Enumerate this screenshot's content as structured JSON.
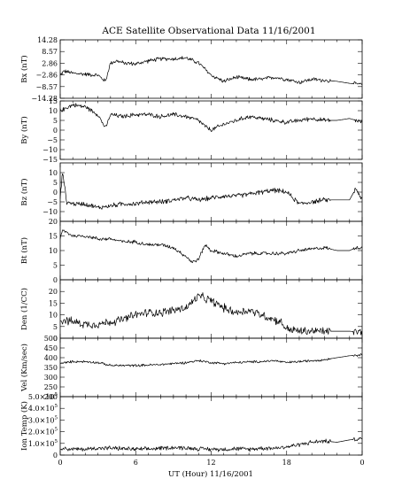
{
  "chart_data": {
    "type": "line",
    "title": "ACE Satellite Observational Data   11/16/2001",
    "xlabel": "UT (Hour)   11/16/2001",
    "x_ticks": [
      "0",
      "6",
      "12",
      "18",
      "0"
    ],
    "xlim": [
      0,
      24
    ],
    "grid": false,
    "legend": "none",
    "panels": [
      {
        "id": "bx",
        "ylabel": "Bx (nT)",
        "ylim": [
          -14.28,
          14.28
        ],
        "y_ticks": [
          {
            "v": 14.28,
            "label": "14.28"
          },
          {
            "v": 8.57,
            "label": "8.57"
          },
          {
            "v": 2.86,
            "label": "2.86"
          },
          {
            "v": -2.86,
            "label": "−2.86"
          },
          {
            "v": -8.57,
            "label": "−8.57"
          },
          {
            "v": -14.28,
            "label": "−14.28"
          }
        ],
        "noise": 0.8,
        "series": {
          "x": [
            0,
            0.3,
            1,
            2,
            3,
            3.6,
            4,
            4.5,
            5,
            6,
            7,
            8,
            9,
            10,
            11,
            12,
            13,
            14,
            15,
            16,
            17,
            18,
            19,
            20,
            21,
            22,
            23,
            24
          ],
          "y": [
            -3,
            -1,
            -2,
            -2.5,
            -3,
            -6,
            3,
            4,
            3,
            2.5,
            4,
            5,
            5,
            5.5,
            3,
            -3,
            -6,
            -4,
            -5,
            -5,
            -4,
            -5,
            -6.5,
            -5,
            -5.5,
            -6,
            -7,
            -7.5
          ]
        }
      },
      {
        "id": "by",
        "ylabel": "By (nT)",
        "ylim": [
          -15,
          15
        ],
        "y_ticks": [
          {
            "v": 15,
            "label": "15"
          },
          {
            "v": 10,
            "label": "10"
          },
          {
            "v": 5,
            "label": "5"
          },
          {
            "v": 0,
            "label": "0"
          },
          {
            "v": -5,
            "label": "−5"
          },
          {
            "v": -10,
            "label": "−10"
          },
          {
            "v": -15,
            "label": "−15"
          }
        ],
        "noise": 0.9,
        "series": {
          "x": [
            0,
            1,
            2,
            2.5,
            3,
            3.6,
            4,
            5,
            6,
            7,
            8,
            9,
            10,
            11,
            11.5,
            12,
            13,
            14,
            15,
            16,
            17,
            18,
            19,
            20,
            21,
            22,
            23,
            24
          ],
          "y": [
            10,
            13,
            12,
            10,
            8,
            1,
            8,
            7,
            8,
            8,
            7,
            8,
            7,
            5,
            2,
            0,
            3,
            5,
            7,
            6,
            5,
            4,
            5,
            6,
            5,
            5,
            6,
            4
          ]
        }
      },
      {
        "id": "bz",
        "ylabel": "Bz (nT)",
        "ylim": [
          -15,
          15
        ],
        "y_ticks": [
          {
            "v": 10,
            "label": "10"
          },
          {
            "v": 5,
            "label": "5"
          },
          {
            "v": 0,
            "label": "0"
          },
          {
            "v": -5,
            "label": "−5"
          },
          {
            "v": -10,
            "label": "−10"
          }
        ],
        "noise": 1.0,
        "series": {
          "x": [
            0,
            0.2,
            0.5,
            1,
            2,
            3,
            4,
            5,
            6,
            7,
            8,
            9,
            10,
            11,
            12,
            13,
            14,
            15,
            16,
            17,
            18,
            19,
            20,
            21,
            22,
            23,
            23.5,
            24
          ],
          "y": [
            -3,
            11,
            -5,
            -6,
            -6,
            -8,
            -7,
            -6,
            -6,
            -5,
            -5,
            -4,
            -3,
            -4,
            -3,
            -2,
            -2,
            -1,
            0,
            1,
            0,
            -6,
            -5,
            -4,
            -4,
            -4,
            2,
            -4
          ]
        }
      },
      {
        "id": "bt",
        "ylabel": "Bt (nT)",
        "ylim": [
          0,
          20
        ],
        "y_ticks": [
          {
            "v": 20,
            "label": "20"
          },
          {
            "v": 15,
            "label": "15"
          },
          {
            "v": 10,
            "label": "10"
          },
          {
            "v": 5,
            "label": "5"
          },
          {
            "v": 0,
            "label": "0"
          }
        ],
        "noise": 0.5,
        "series": {
          "x": [
            0,
            0.2,
            1,
            2,
            3,
            4,
            5,
            6,
            7,
            8,
            9,
            10,
            10.5,
            11,
            11.5,
            12,
            13,
            14,
            15,
            16,
            17,
            18,
            19,
            20,
            21,
            22,
            23,
            23.5,
            24
          ],
          "y": [
            14,
            17,
            15,
            15,
            14,
            14,
            13,
            13,
            12,
            12,
            11,
            8,
            6,
            7,
            12,
            10,
            9,
            8,
            9,
            9,
            9,
            9,
            10,
            10.5,
            11,
            10,
            10,
            11,
            11
          ]
        }
      },
      {
        "id": "den",
        "ylabel": "Den (1/CC)",
        "ylim": [
          0,
          25
        ],
        "y_ticks": [
          {
            "v": 20,
            "label": "20"
          },
          {
            "v": 15,
            "label": "15"
          },
          {
            "v": 10,
            "label": "10"
          },
          {
            "v": 5,
            "label": "5"
          },
          {
            "v": 0,
            "label": "0"
          }
        ],
        "noise": 1.5,
        "series": {
          "x": [
            0,
            1,
            2,
            3,
            4,
            5,
            6,
            7,
            8,
            9,
            10,
            11,
            11.5,
            12,
            13,
            14,
            15,
            16,
            17,
            17.5,
            18,
            19,
            20,
            21,
            22,
            23,
            24
          ],
          "y": [
            8,
            7,
            6,
            6,
            7,
            8,
            10,
            11,
            11,
            12,
            13,
            18,
            17,
            16,
            13,
            11,
            12,
            10,
            8,
            7,
            4,
            3,
            3,
            3,
            3,
            3,
            2.5
          ]
        }
      },
      {
        "id": "vel",
        "ylabel": "Vel (Km/sec)",
        "ylim": [
          200,
          500
        ],
        "y_ticks": [
          {
            "v": 500,
            "label": "500"
          },
          {
            "v": 450,
            "label": "450"
          },
          {
            "v": 400,
            "label": "400"
          },
          {
            "v": 350,
            "label": "350"
          },
          {
            "v": 300,
            "label": "300"
          },
          {
            "v": 250,
            "label": "250"
          },
          {
            "v": 200,
            "label": "200"
          }
        ],
        "noise": 5,
        "series": {
          "x": [
            0,
            1,
            2,
            3,
            4,
            5,
            6,
            7,
            8,
            9,
            10,
            11,
            12,
            13,
            14,
            15,
            16,
            17,
            18,
            19,
            20,
            21,
            22,
            23,
            24
          ],
          "y": [
            370,
            380,
            380,
            375,
            360,
            360,
            360,
            362,
            365,
            370,
            375,
            385,
            375,
            370,
            375,
            378,
            380,
            385,
            375,
            380,
            385,
            390,
            400,
            410,
            415
          ]
        }
      },
      {
        "id": "temp",
        "ylabel": "Ion Temp (K)",
        "ylim": [
          0,
          500000
        ],
        "y_ticks": [
          {
            "v": 500000,
            "label": "5.0×10"
          },
          {
            "v": 400000,
            "label": "4.0×10"
          },
          {
            "v": 300000,
            "label": "3.0×10"
          },
          {
            "v": 200000,
            "label": "2.0×10"
          },
          {
            "v": 100000,
            "label": "1.0×10"
          },
          {
            "v": 0,
            "label": "0"
          }
        ],
        "exponent": "5",
        "noise": 15000,
        "series": {
          "x": [
            0,
            1,
            2,
            3,
            4,
            5,
            6,
            7,
            8,
            9,
            10,
            11,
            12,
            13,
            14,
            15,
            16,
            17,
            18,
            19,
            20,
            21,
            22,
            23,
            24
          ],
          "y": [
            60000,
            50000,
            50000,
            60000,
            60000,
            55000,
            50000,
            50000,
            60000,
            65000,
            60000,
            55000,
            50000,
            50000,
            55000,
            50000,
            60000,
            60000,
            70000,
            90000,
            110000,
            120000,
            110000,
            130000,
            140000
          ]
        }
      }
    ]
  }
}
